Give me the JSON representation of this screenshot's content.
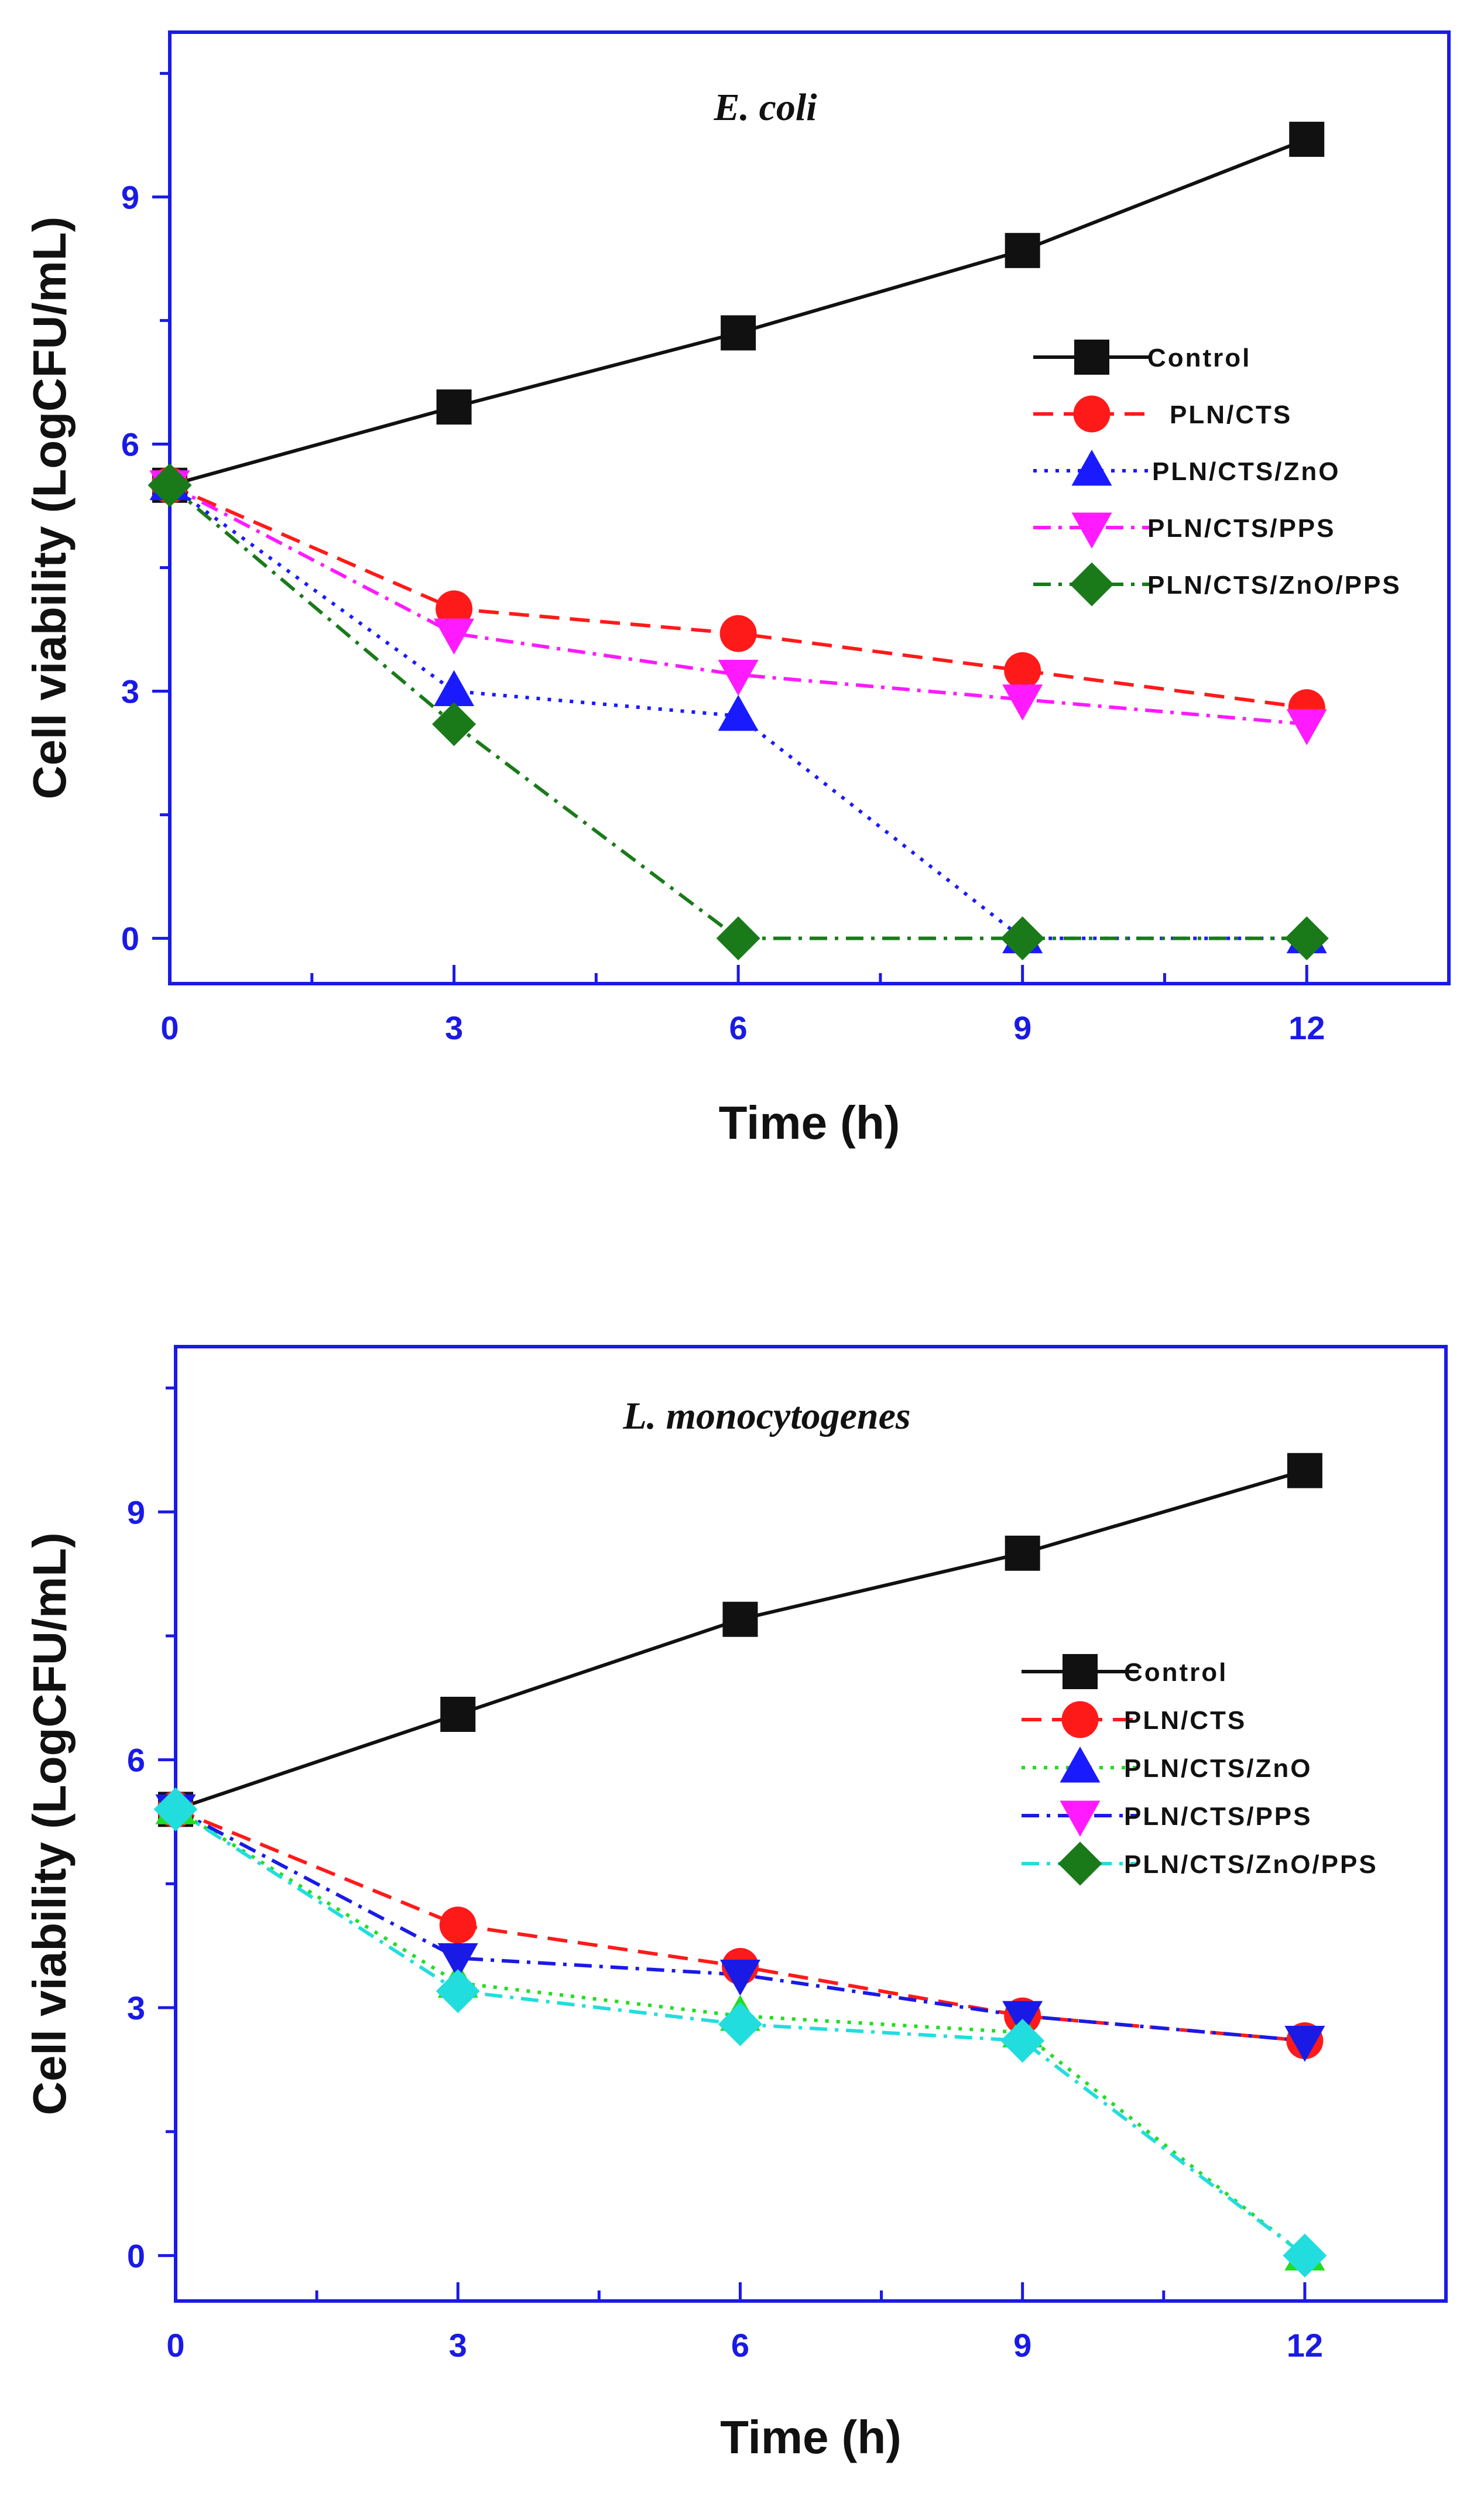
{
  "chart_data": [
    {
      "type": "line",
      "title": "E. coli",
      "xlabel": "Time (h)",
      "ylabel": "Cell viability (LogCFU/mL)",
      "xlim": [
        0,
        13.5
      ],
      "ylim": [
        -0.55,
        11.0
      ],
      "xticks": [
        0,
        3,
        6,
        9,
        12
      ],
      "yticks": [
        0,
        3,
        6,
        9
      ],
      "legend_position": "right",
      "x": [
        0,
        3,
        6,
        9,
        12
      ],
      "series": [
        {
          "name": "Control",
          "values": [
            5.5,
            6.45,
            7.35,
            8.35,
            9.7
          ],
          "color": "#111111",
          "marker": "square",
          "dash": "solid"
        },
        {
          "name": "PLN/CTS",
          "values": [
            5.5,
            4.0,
            3.7,
            3.25,
            2.8
          ],
          "color": "#ff1a1a",
          "marker": "circle",
          "dash": "dash"
        },
        {
          "name": "PLN/CTS/ZnO",
          "values": [
            5.5,
            3.0,
            2.7,
            0.0,
            0.0
          ],
          "color": "#1a1aff",
          "marker": "triangle-up",
          "dash": "dot"
        },
        {
          "name": "PLN/CTS/PPS",
          "values": [
            5.5,
            3.7,
            3.2,
            2.9,
            2.6
          ],
          "color": "#ff1aff",
          "marker": "triangle-down",
          "dash": "dashdot"
        },
        {
          "name": "PLN/CTS/ZnO/PPS",
          "values": [
            5.5,
            2.6,
            0.0,
            0.0,
            0.0
          ],
          "color": "#1a7a1a",
          "marker": "diamond",
          "dash": "dashdot"
        }
      ]
    },
    {
      "type": "line",
      "title": "L. monocytogenes",
      "xlabel": "Time (h)",
      "ylabel": "Cell viability (LogCFU/mL)",
      "xlim": [
        0,
        13.5
      ],
      "ylim": [
        -0.55,
        11.0
      ],
      "xticks": [
        0,
        3,
        6,
        9,
        12
      ],
      "yticks": [
        0,
        3,
        6,
        9
      ],
      "legend_position": "right",
      "x": [
        0,
        3,
        6,
        9,
        12
      ],
      "series": [
        {
          "name": "Control",
          "values": [
            5.4,
            6.55,
            7.7,
            8.5,
            9.5
          ],
          "color": "#111111",
          "marker": "square",
          "dash": "solid"
        },
        {
          "name": "PLN/CTS",
          "values": [
            5.4,
            4.0,
            3.5,
            2.9,
            2.6
          ],
          "color": "#ff1a1a",
          "marker": "circle",
          "dash": "dash"
        },
        {
          "name": "PLN/CTS/ZnO",
          "values": [
            5.4,
            3.3,
            2.9,
            2.7,
            0.0
          ],
          "color": "#22dd22",
          "marker": "triangle-up",
          "dash": "dot"
        },
        {
          "name": "PLN/CTS/PPS",
          "values": [
            5.4,
            3.6,
            3.4,
            2.9,
            2.6
          ],
          "color": "#1a1ae6",
          "marker": "triangle-down",
          "dash": "dashdot"
        },
        {
          "name": "PLN/CTS/ZnO/PPS",
          "values": [
            5.4,
            3.2,
            2.8,
            2.6,
            0.0
          ],
          "color": "#22dddd",
          "marker": "diamond",
          "dash": "dashdot"
        }
      ]
    }
  ],
  "legend_marker_colors": [
    "#111111",
    "#ff1a1a",
    "#1a1aff",
    "#ff1aff",
    "#1a7a1a"
  ]
}
